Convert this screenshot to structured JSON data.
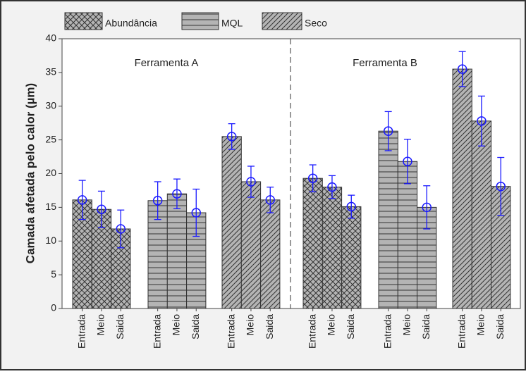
{
  "chart_data": {
    "type": "bar",
    "ylabel": "Camada afetada  pelo calor (µm)",
    "annotations": [
      "Ferramenta A",
      "Ferramenta B"
    ],
    "categories": [
      "Entrada",
      "Meio",
      "Saida",
      "Entrada",
      "Meio",
      "Saida",
      "Entrada",
      "Meio",
      "Saida",
      "Entrada",
      "Meio",
      "Saida",
      "Entrada",
      "Meio",
      "Saida",
      "Entrada",
      "Meio",
      "Saida"
    ],
    "series": [
      {
        "name": "Abundância",
        "color": "#b4b4b4",
        "pattern": "crosshatch",
        "values": [
          16.1,
          14.7,
          11.8,
          null,
          null,
          null,
          null,
          null,
          null,
          19.3,
          18.0,
          15.1,
          null,
          null,
          null,
          null,
          null,
          null
        ],
        "errors": [
          2.9,
          2.7,
          2.8,
          null,
          null,
          null,
          null,
          null,
          null,
          2.0,
          1.7,
          1.7,
          null,
          null,
          null,
          null,
          null,
          null
        ]
      },
      {
        "name": "MQL",
        "color": "#b4b4b4",
        "pattern": "horizontal",
        "values": [
          null,
          null,
          null,
          16.0,
          17.0,
          14.2,
          null,
          null,
          null,
          null,
          null,
          null,
          26.3,
          21.8,
          15.0,
          null,
          null,
          null
        ],
        "errors": [
          null,
          null,
          null,
          2.8,
          2.2,
          3.5,
          null,
          null,
          null,
          null,
          null,
          null,
          2.9,
          3.3,
          3.2,
          null,
          null,
          null
        ]
      },
      {
        "name": "Seco",
        "color": "#b4b4b4",
        "pattern": "diagonal",
        "values": [
          null,
          null,
          null,
          null,
          null,
          null,
          25.5,
          18.8,
          16.1,
          null,
          null,
          null,
          null,
          null,
          null,
          35.5,
          27.8,
          18.1
        ],
        "errors": [
          null,
          null,
          null,
          null,
          null,
          null,
          1.9,
          2.3,
          1.9,
          null,
          null,
          null,
          null,
          null,
          null,
          2.6,
          3.7,
          4.3
        ]
      }
    ],
    "error_color": "#1a1aff",
    "ylim": [
      0,
      40
    ],
    "yticks": [
      0,
      5,
      10,
      15,
      20,
      25,
      30,
      35,
      40
    ]
  }
}
